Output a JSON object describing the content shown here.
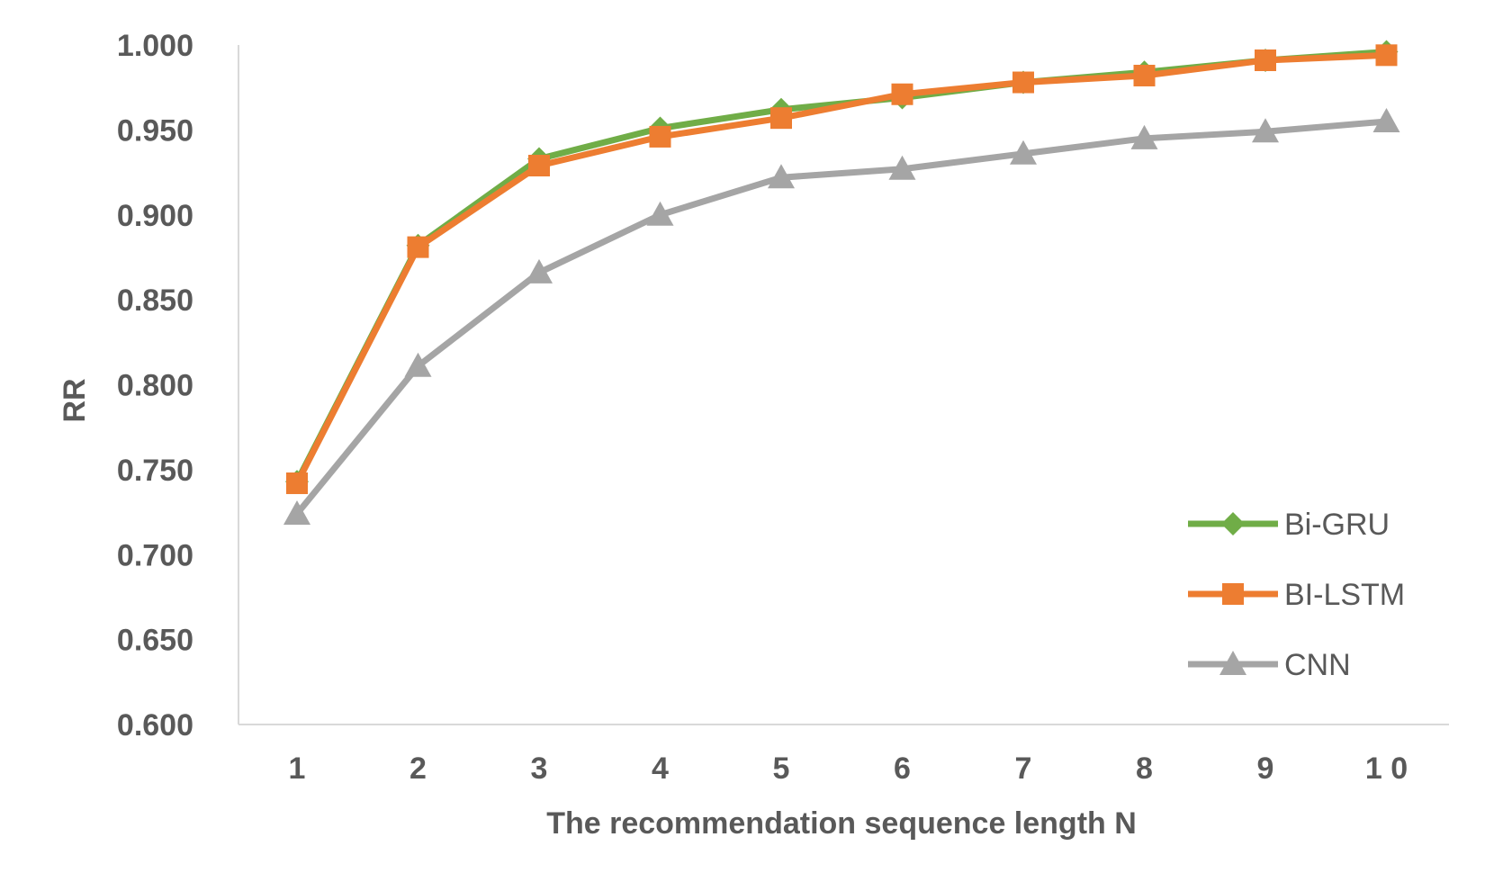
{
  "chart_data": {
    "type": "line",
    "xlabel": "The recommendation sequence length N",
    "ylabel": "RR",
    "ylim": [
      0.6,
      1.0
    ],
    "yticks": [
      "0.600",
      "0.650",
      "0.700",
      "0.750",
      "0.800",
      "0.850",
      "0.900",
      "0.950",
      "1.000"
    ],
    "categories": [
      "1",
      "2",
      "3",
      "4",
      "5",
      "6",
      "7",
      "8",
      "9",
      "1 0"
    ],
    "grid": false,
    "legend_position": "right",
    "series": [
      {
        "name": "Bi-GRU",
        "color": "#70AD47",
        "marker": "diamond",
        "values": [
          0.743,
          0.882,
          0.933,
          0.951,
          0.962,
          0.969,
          0.978,
          0.984,
          0.991,
          0.996
        ]
      },
      {
        "name": "BI-LSTM",
        "color": "#ED7D31",
        "marker": "square",
        "values": [
          0.742,
          0.881,
          0.929,
          0.946,
          0.957,
          0.971,
          0.978,
          0.982,
          0.991,
          0.994
        ]
      },
      {
        "name": "CNN",
        "color": "#A5A5A5",
        "marker": "triangle",
        "values": [
          0.724,
          0.811,
          0.866,
          0.9,
          0.922,
          0.927,
          0.936,
          0.945,
          0.949,
          0.955
        ]
      }
    ]
  }
}
